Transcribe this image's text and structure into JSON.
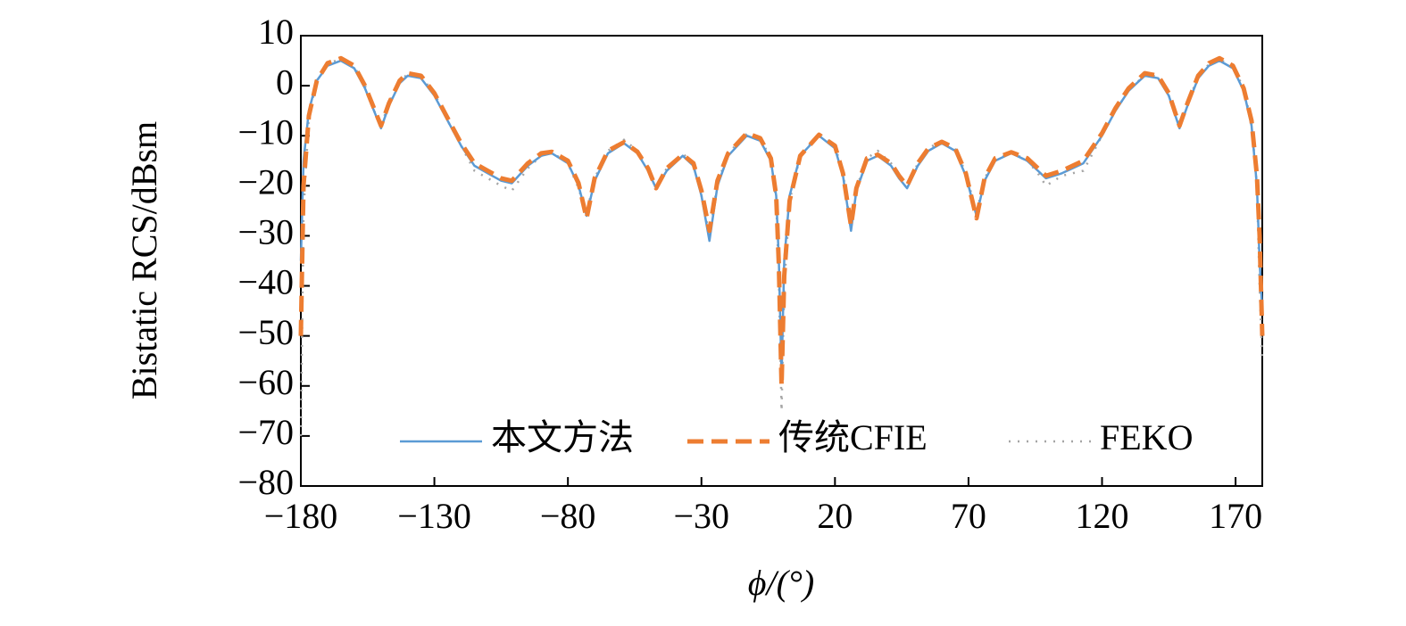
{
  "chart_data": {
    "type": "line",
    "xlabel": "ϕ/(°)",
    "ylabel": "Bistatic RCS/dBsm",
    "xlim": [
      -180,
      180
    ],
    "ylim": [
      -80,
      10
    ],
    "xticks": [
      {
        "value": -180,
        "label": "−180"
      },
      {
        "value": -130,
        "label": "−130"
      },
      {
        "value": -80,
        "label": "−80"
      },
      {
        "value": -30,
        "label": "−30"
      },
      20,
      70,
      120,
      170
    ],
    "yticks": [
      {
        "value": -80,
        "label": "−80"
      },
      {
        "value": -70,
        "label": "−70"
      },
      {
        "value": -60,
        "label": "−60"
      },
      {
        "value": -50,
        "label": "−50"
      },
      {
        "value": -40,
        "label": "−40"
      },
      {
        "value": -30,
        "label": "−30"
      },
      {
        "value": -20,
        "label": "−20"
      },
      {
        "value": -10,
        "label": "−10"
      },
      0,
      10
    ],
    "legend": "lower center",
    "x": [
      -180,
      -179,
      -177,
      -174,
      -170,
      -165,
      -160,
      -156,
      -153,
      -150,
      -147,
      -143,
      -140,
      -135,
      -130,
      -125,
      -120,
      -115,
      -110,
      -105,
      -101,
      -95,
      -90,
      -86,
      -80,
      -76,
      -73,
      -70,
      -65,
      -59,
      -54,
      -50,
      -47,
      -43,
      -37,
      -33,
      -30,
      -27,
      -24,
      -20,
      -13,
      -8,
      -4,
      -2,
      -1,
      0,
      1,
      3,
      7,
      14,
      20,
      23,
      26,
      28,
      32,
      36,
      41,
      44,
      47,
      51,
      55,
      60,
      65,
      69,
      73,
      76,
      80,
      86,
      92,
      96,
      99,
      105,
      113,
      120,
      125,
      130,
      136,
      141,
      145,
      149,
      152,
      156,
      160,
      164,
      169,
      173,
      176,
      178,
      179,
      180
    ],
    "series": [
      {
        "name": "本文方法",
        "color": "#5b9bd5",
        "style": "solid",
        "values": [
          -35,
          -15,
          -5,
          1,
          4,
          5,
          3.5,
          -0.5,
          -4.5,
          -8.5,
          -4,
          0.5,
          2,
          1.5,
          -2,
          -7,
          -12,
          -16,
          -17.5,
          -19,
          -19.5,
          -16,
          -14,
          -13.5,
          -15.5,
          -20,
          -26,
          -19,
          -13.5,
          -11.5,
          -13.5,
          -17,
          -20.5,
          -17,
          -14,
          -16,
          -22,
          -31,
          -20,
          -14,
          -10,
          -11,
          -15,
          -22,
          -35,
          -58,
          -35,
          -22,
          -14,
          -10,
          -12.5,
          -18,
          -29,
          -21,
          -15,
          -14,
          -16,
          -18.5,
          -20.5,
          -16,
          -13,
          -11.5,
          -13,
          -18,
          -26,
          -19,
          -15,
          -13.5,
          -15,
          -17,
          -18.5,
          -17.5,
          -15.5,
          -10,
          -5,
          -1,
          2,
          1.5,
          -2,
          -8.5,
          -4,
          1.5,
          4,
          5,
          3.5,
          -1,
          -8,
          -20,
          -35,
          -45
        ]
      },
      {
        "name": "传统CFIE",
        "color": "#ed7d31",
        "style": "dashed",
        "values": [
          -50,
          -20,
          -6,
          1,
          4.5,
          5.5,
          4,
          0,
          -4,
          -8,
          -3.5,
          1,
          2.5,
          2,
          -1.5,
          -6.5,
          -11.5,
          -15.5,
          -17,
          -18.5,
          -19,
          -15.5,
          -13.5,
          -13.2,
          -15,
          -19.5,
          -26.5,
          -18.5,
          -13,
          -11.3,
          -13.2,
          -16.5,
          -20.5,
          -16.5,
          -13.8,
          -15.5,
          -21,
          -29,
          -19,
          -13.5,
          -9.5,
          -10.5,
          -14.5,
          -22,
          -36,
          -60,
          -38,
          -23,
          -14,
          -9.8,
          -12,
          -17.5,
          -28,
          -20.5,
          -14.5,
          -13.8,
          -15.5,
          -18,
          -20,
          -15.5,
          -12.5,
          -11.2,
          -12.5,
          -17.5,
          -26.5,
          -18.5,
          -14.5,
          -13.3,
          -14.5,
          -16.5,
          -18,
          -17,
          -15,
          -9.5,
          -4.5,
          -0.5,
          2.5,
          2,
          -1.5,
          -8,
          -3.5,
          2,
          4.5,
          5.5,
          4,
          -0.5,
          -7,
          -18,
          -30,
          -50
        ]
      },
      {
        "name": "FEKO",
        "color": "#a5a5a5",
        "style": "dotted",
        "values": [
          -70,
          -25,
          -6,
          1,
          4.5,
          5.3,
          3.8,
          0,
          -4.5,
          -8,
          -3.5,
          1,
          2.3,
          1.8,
          -1.5,
          -7,
          -12,
          -17,
          -18.5,
          -20,
          -21,
          -16.5,
          -14,
          -13.3,
          -15.5,
          -20.5,
          -25.5,
          -18.5,
          -13,
          -10.8,
          -13,
          -17,
          -20.5,
          -16.5,
          -13.5,
          -15.8,
          -22,
          -30,
          -19.5,
          -13.5,
          -9.6,
          -10.6,
          -14.5,
          -23,
          -38,
          -65,
          -40,
          -23,
          -14,
          -9.5,
          -12,
          -17.5,
          -28.5,
          -20.5,
          -14.5,
          -13,
          -15.5,
          -18.5,
          -20.5,
          -15.5,
          -12.5,
          -11,
          -12.5,
          -17.5,
          -25.5,
          -18.5,
          -15,
          -13.2,
          -15,
          -17.5,
          -20,
          -18,
          -17,
          -10,
          -5,
          -1,
          2.2,
          1.8,
          -2,
          -8,
          -3.5,
          1.8,
          4.3,
          5.3,
          3.8,
          -0.5,
          -7.5,
          -20,
          -40,
          -55
        ]
      }
    ]
  }
}
